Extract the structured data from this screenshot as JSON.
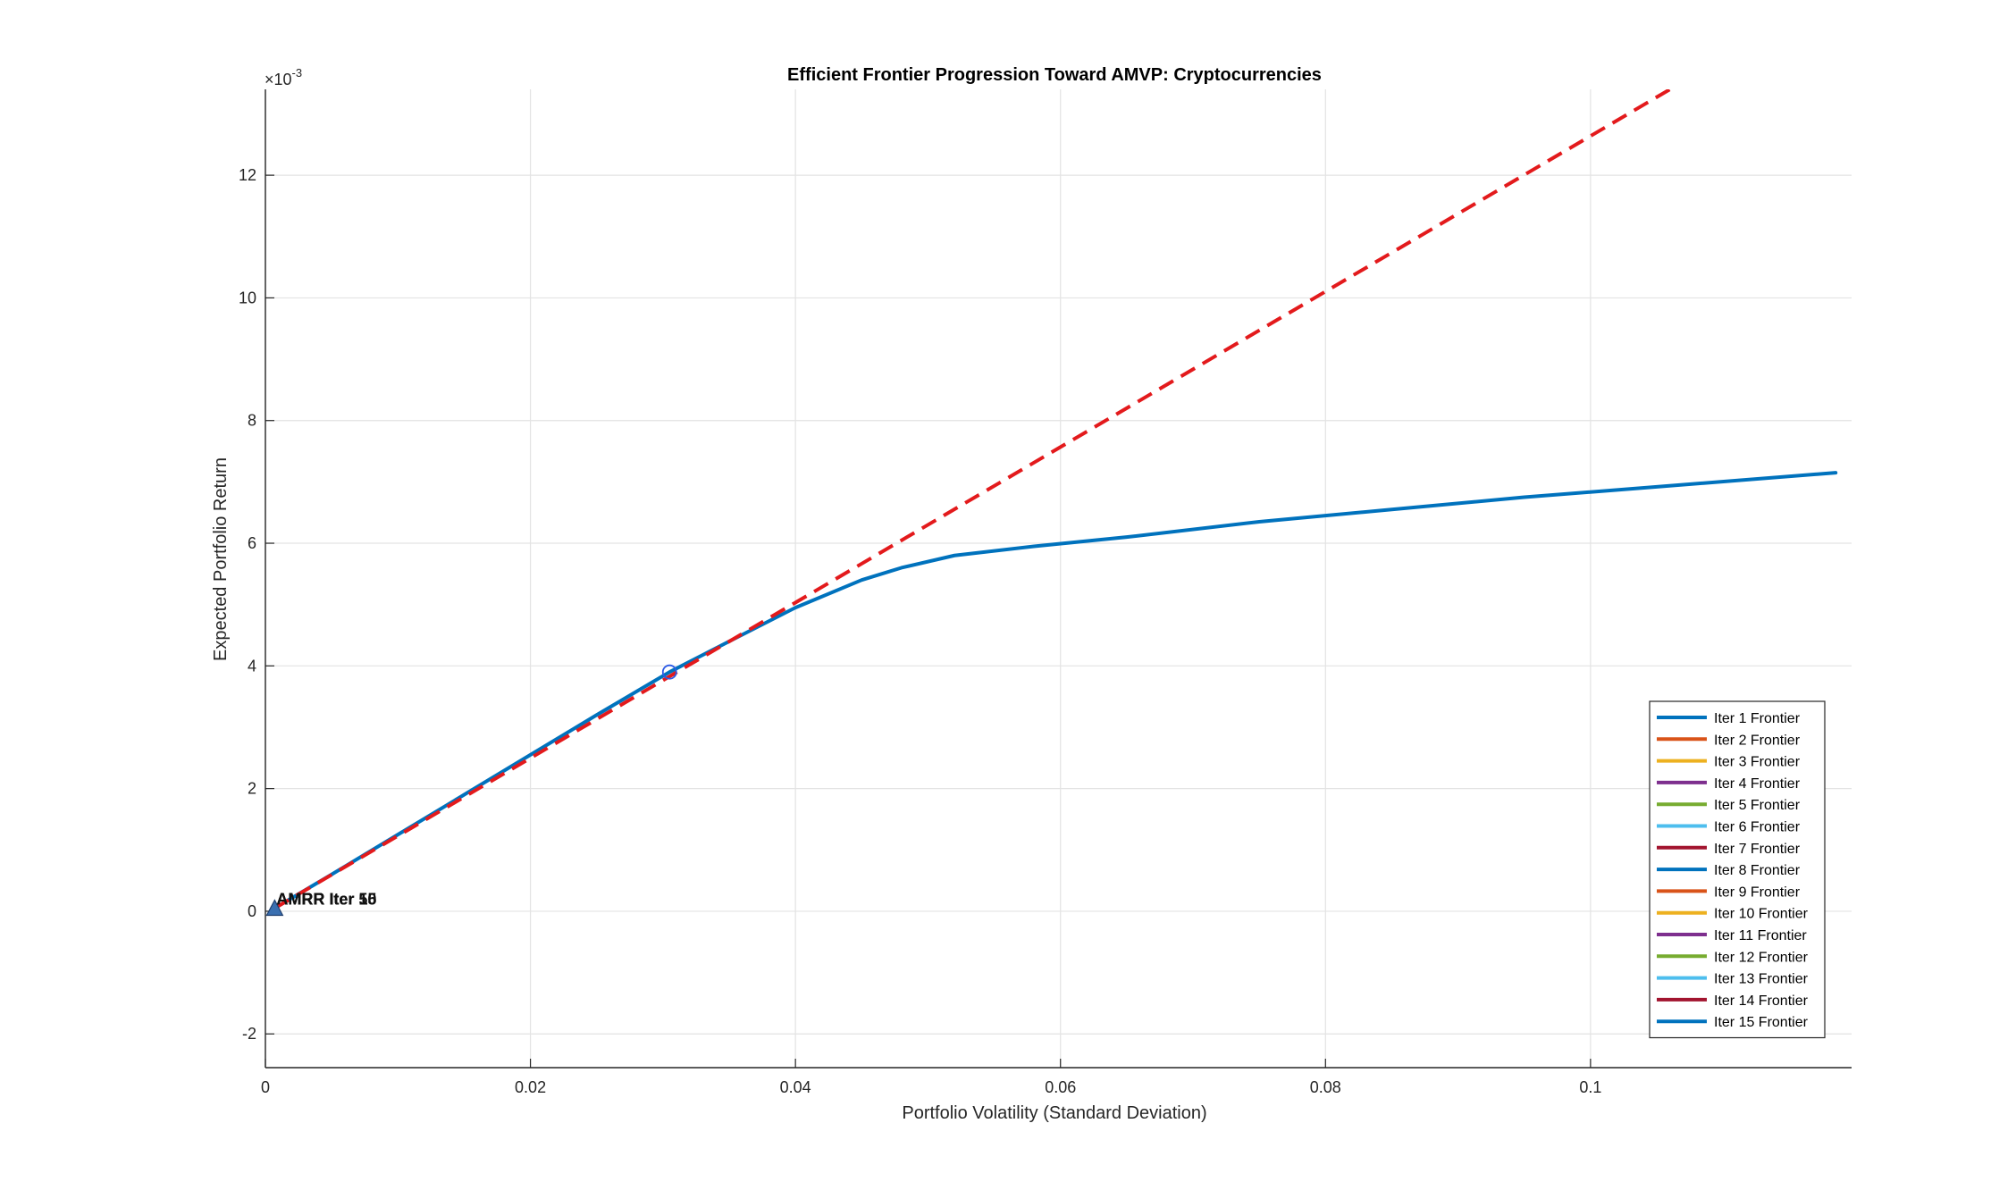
{
  "chart_data": {
    "type": "line",
    "title": "Efficient Frontier Progression Toward AMVP: Cryptocurrencies",
    "xlabel": "Portfolio Volatility (Standard Deviation)",
    "ylabel": "Expected Portfolio Return",
    "y_exponent_label": "×10",
    "y_exponent_power": "-3",
    "xlim": [
      0,
      0.1197
    ],
    "ylim": [
      -2.55,
      13.4
    ],
    "x_ticks": [
      0,
      0.02,
      0.04,
      0.06,
      0.08,
      0.1
    ],
    "x_tick_labels": [
      "0",
      "0.02",
      "0.04",
      "0.06",
      "0.08",
      "0.1"
    ],
    "y_ticks": [
      -2,
      0,
      2,
      4,
      6,
      8,
      10,
      12
    ],
    "y_tick_labels": [
      "-2",
      "0",
      "2",
      "4",
      "6",
      "8",
      "10",
      "12"
    ],
    "grid": true,
    "legend_position": "bottom-right",
    "frontier": {
      "x": [
        0.0007,
        0.005,
        0.01,
        0.015,
        0.02,
        0.025,
        0.0305,
        0.035,
        0.04,
        0.045,
        0.048,
        0.052,
        0.058,
        0.065,
        0.075,
        0.085,
        0.095,
        0.105,
        0.1185
      ],
      "y": [
        0.05,
        0.6,
        1.25,
        1.9,
        2.55,
        3.2,
        3.9,
        4.4,
        4.95,
        5.4,
        5.6,
        5.8,
        5.95,
        6.1,
        6.35,
        6.55,
        6.75,
        6.92,
        7.15
      ]
    },
    "cml": {
      "x": [
        0.0007,
        0.106
      ],
      "y": [
        0.05,
        13.4
      ]
    },
    "tangency_point": {
      "x": 0.0305,
      "y": 3.9
    },
    "amvp_point": {
      "x": 0.0007,
      "y": 0.05
    },
    "amvp_labels": [
      "AMRR Iter 1",
      "AMRR Iter 5",
      "AMRR Iter 10",
      "AMRR Iter 15"
    ],
    "legend": [
      {
        "name": "Iter 1 Frontier",
        "color": "#0072BD"
      },
      {
        "name": "Iter 2 Frontier",
        "color": "#D95319"
      },
      {
        "name": "Iter 3 Frontier",
        "color": "#EDB120"
      },
      {
        "name": "Iter 4 Frontier",
        "color": "#7E2F8E"
      },
      {
        "name": "Iter 5 Frontier",
        "color": "#77AC30"
      },
      {
        "name": "Iter 6 Frontier",
        "color": "#4DBEEE"
      },
      {
        "name": "Iter 7 Frontier",
        "color": "#A2142F"
      },
      {
        "name": "Iter 8 Frontier",
        "color": "#0072BD"
      },
      {
        "name": "Iter 9 Frontier",
        "color": "#D95319"
      },
      {
        "name": "Iter 10 Frontier",
        "color": "#EDB120"
      },
      {
        "name": "Iter 11 Frontier",
        "color": "#7E2F8E"
      },
      {
        "name": "Iter 12 Frontier",
        "color": "#77AC30"
      },
      {
        "name": "Iter 13 Frontier",
        "color": "#4DBEEE"
      },
      {
        "name": "Iter 14 Frontier",
        "color": "#A2142F"
      },
      {
        "name": "Iter 15 Frontier",
        "color": "#0072BD"
      }
    ],
    "colors": {
      "frontier": "#0072BD",
      "cml": "#E31A1C",
      "tangency": "#2E5BE6",
      "amvp_marker": "#3A6FB0"
    }
  }
}
